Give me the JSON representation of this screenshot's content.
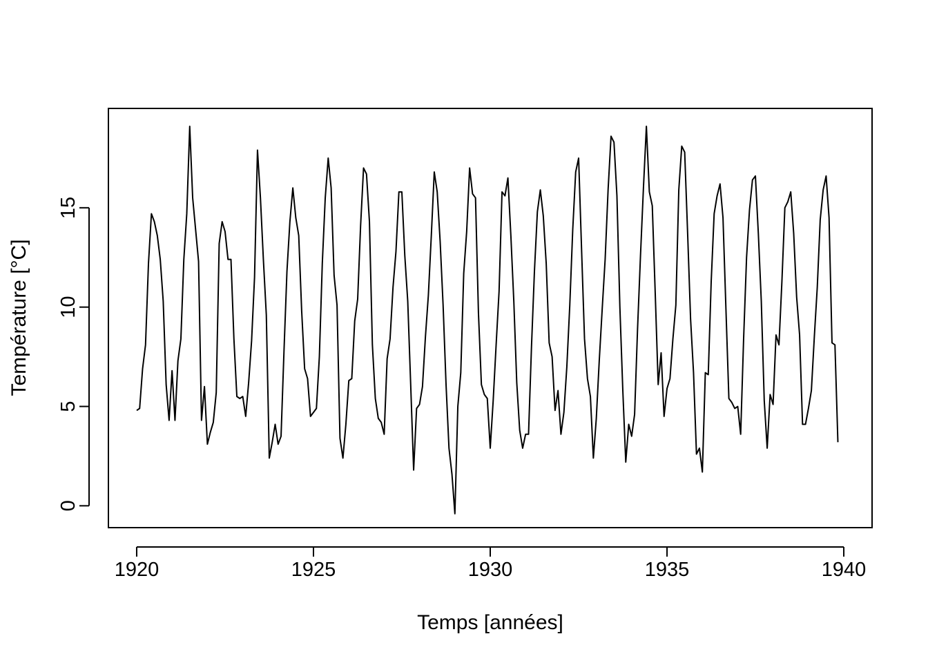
{
  "chart_data": {
    "type": "line",
    "xlabel": "Temps [années]",
    "ylabel": "Température [°C]",
    "xlim": [
      1919.2,
      1940.8
    ],
    "ylim": [
      -1.1,
      20.0
    ],
    "x_ticks": [
      1920,
      1925,
      1930,
      1935,
      1940
    ],
    "x_tick_labels": [
      "1920",
      "1925",
      "1930",
      "1935",
      "1940"
    ],
    "y_ticks": [
      0,
      5,
      10,
      15
    ],
    "y_tick_labels": [
      "0",
      "5",
      "10",
      "15"
    ],
    "grid": false,
    "box": true,
    "line_color": "#000000",
    "x_start": 1920.0,
    "x_step": 0.08333333,
    "series": [
      {
        "values": [
          4.8,
          4.9,
          6.9,
          8.1,
          12.2,
          14.7,
          14.3,
          13.6,
          12.4,
          10.3,
          6.1,
          4.3,
          6.8,
          4.3,
          7.3,
          8.4,
          12.4,
          14.7,
          19.1,
          15.5,
          13.9,
          12.3,
          4.3,
          6.0,
          3.1,
          3.7,
          4.2,
          5.7,
          13.2,
          14.3,
          13.8,
          12.4,
          12.4,
          8.4,
          5.5,
          5.4,
          5.5,
          4.5,
          6.2,
          8.3,
          11.5,
          17.9,
          15.5,
          12.4,
          9.6,
          2.4,
          3.2,
          4.1,
          3.1,
          3.5,
          7.8,
          11.8,
          14.3,
          16.0,
          14.5,
          13.6,
          9.8,
          6.9,
          6.4,
          4.5,
          4.7,
          4.9,
          7.5,
          12.2,
          15.5,
          17.5,
          16.0,
          11.6,
          10.1,
          3.4,
          2.4,
          4.1,
          6.3,
          6.4,
          9.3,
          10.4,
          14.1,
          17.0,
          16.7,
          14.3,
          8.1,
          5.4,
          4.4,
          4.2,
          3.6,
          7.4,
          8.4,
          11.0,
          12.8,
          15.8,
          15.8,
          12.6,
          10.3,
          6.1,
          1.8,
          4.9,
          5.1,
          6.0,
          8.5,
          10.6,
          13.6,
          16.8,
          15.8,
          13.3,
          10.1,
          6.1,
          2.9,
          1.6,
          -0.4,
          5.0,
          6.7,
          11.7,
          13.8,
          17.0,
          15.7,
          15.5,
          9.7,
          6.1,
          5.6,
          5.4,
          2.9,
          5.3,
          8.1,
          10.8,
          15.8,
          15.6,
          16.5,
          13.6,
          10.3,
          6.2,
          3.8,
          2.9,
          3.6,
          3.6,
          8.0,
          11.8,
          14.8,
          15.9,
          14.6,
          12.2,
          8.2,
          7.5,
          4.8,
          5.8,
          3.6,
          4.7,
          7.0,
          10.1,
          13.9,
          16.8,
          17.5,
          12.9,
          8.4,
          6.4,
          5.5,
          2.4,
          4.4,
          7.3,
          9.9,
          12.4,
          15.9,
          18.6,
          18.3,
          15.6,
          10.0,
          5.8,
          2.2,
          4.1,
          3.5,
          4.6,
          8.9,
          12.6,
          16.0,
          19.1,
          15.8,
          15.1,
          10.7,
          6.1,
          7.7,
          4.5,
          5.9,
          6.4,
          8.4,
          10.1,
          15.9,
          18.1,
          17.8,
          13.7,
          9.4,
          6.7,
          2.6,
          2.9,
          1.7,
          6.7,
          6.6,
          11.3,
          14.7,
          15.6,
          16.2,
          14.5,
          9.9,
          5.4,
          5.2,
          4.9,
          5.0,
          3.6,
          8.4,
          12.5,
          14.9,
          16.4,
          16.6,
          13.7,
          10.3,
          5.3,
          2.9,
          5.6,
          5.1,
          8.6,
          8.1,
          11.3,
          15.0,
          15.3,
          15.8,
          13.7,
          10.5,
          8.6,
          4.1,
          4.1,
          4.9,
          5.8,
          8.5,
          11.0,
          14.4,
          15.9,
          16.6,
          14.5,
          8.2,
          8.1,
          3.2
        ]
      }
    ]
  }
}
